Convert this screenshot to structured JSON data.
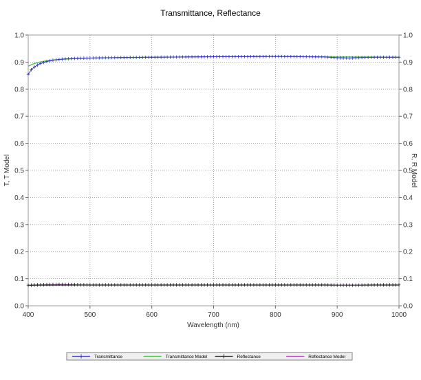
{
  "chart_data": {
    "type": "line",
    "title": "Transmittance, Reflectance",
    "xlabel": "Wavelength (nm)",
    "ylabel_left": "T, T Model",
    "ylabel_right": "R, R Model",
    "xlim": [
      400,
      1000
    ],
    "ylim": [
      0.0,
      1.0
    ],
    "x_ticks": [
      400,
      500,
      600,
      700,
      800,
      900,
      1000
    ],
    "y_ticks": [
      0.0,
      0.1,
      0.2,
      0.3,
      0.4,
      0.5,
      0.6,
      0.7,
      0.8,
      0.9,
      1.0
    ],
    "x_tick_labels": [
      "400",
      "500",
      "600",
      "700",
      "800",
      "900",
      "1000"
    ],
    "y_tick_labels": [
      "0.0",
      "0.1",
      "0.2",
      "0.3",
      "0.4",
      "0.5",
      "0.6",
      "0.7",
      "0.8",
      "0.9",
      "1.0"
    ],
    "grid": true,
    "legend_position": "bottom",
    "series": [
      {
        "name": "Transmittance",
        "color": "#3a3ac8",
        "marker": "plus",
        "points": [
          [
            400,
            0.855
          ],
          [
            405,
            0.872
          ],
          [
            410,
            0.882
          ],
          [
            415,
            0.889
          ],
          [
            420,
            0.895
          ],
          [
            430,
            0.902
          ],
          [
            440,
            0.907
          ],
          [
            450,
            0.91
          ],
          [
            460,
            0.912
          ],
          [
            470,
            0.913
          ],
          [
            480,
            0.914
          ],
          [
            500,
            0.915
          ],
          [
            520,
            0.916
          ],
          [
            550,
            0.917
          ],
          [
            600,
            0.918
          ],
          [
            650,
            0.919
          ],
          [
            700,
            0.92
          ],
          [
            750,
            0.92
          ],
          [
            800,
            0.921
          ],
          [
            850,
            0.92
          ],
          [
            880,
            0.919
          ],
          [
            900,
            0.916
          ],
          [
            920,
            0.915
          ],
          [
            940,
            0.917
          ],
          [
            960,
            0.918
          ],
          [
            1000,
            0.918
          ]
        ]
      },
      {
        "name": "Transmittance Model",
        "color": "#40c040",
        "marker": "none",
        "points": [
          [
            400,
            0.885
          ],
          [
            410,
            0.895
          ],
          [
            420,
            0.901
          ],
          [
            430,
            0.905
          ],
          [
            440,
            0.908
          ],
          [
            460,
            0.911
          ],
          [
            480,
            0.913
          ],
          [
            500,
            0.915
          ],
          [
            550,
            0.917
          ],
          [
            600,
            0.918
          ],
          [
            650,
            0.919
          ],
          [
            700,
            0.92
          ],
          [
            750,
            0.921
          ],
          [
            800,
            0.921
          ],
          [
            850,
            0.92
          ],
          [
            900,
            0.919
          ],
          [
            950,
            0.919
          ],
          [
            1000,
            0.918
          ]
        ]
      },
      {
        "name": "Reflectance",
        "color": "#202020",
        "marker": "plus",
        "points": [
          [
            400,
            0.076
          ],
          [
            430,
            0.078
          ],
          [
            450,
            0.079
          ],
          [
            470,
            0.078
          ],
          [
            500,
            0.077
          ],
          [
            600,
            0.077
          ],
          [
            700,
            0.077
          ],
          [
            800,
            0.077
          ],
          [
            880,
            0.077
          ],
          [
            900,
            0.076
          ],
          [
            930,
            0.076
          ],
          [
            960,
            0.077
          ],
          [
            1000,
            0.077
          ]
        ]
      },
      {
        "name": "Reflectance Model",
        "color": "#b040c0",
        "marker": "none",
        "points": [
          [
            400,
            0.075
          ],
          [
            500,
            0.076
          ],
          [
            600,
            0.076
          ],
          [
            700,
            0.076
          ],
          [
            800,
            0.076
          ],
          [
            900,
            0.076
          ],
          [
            1000,
            0.076
          ]
        ]
      }
    ]
  }
}
